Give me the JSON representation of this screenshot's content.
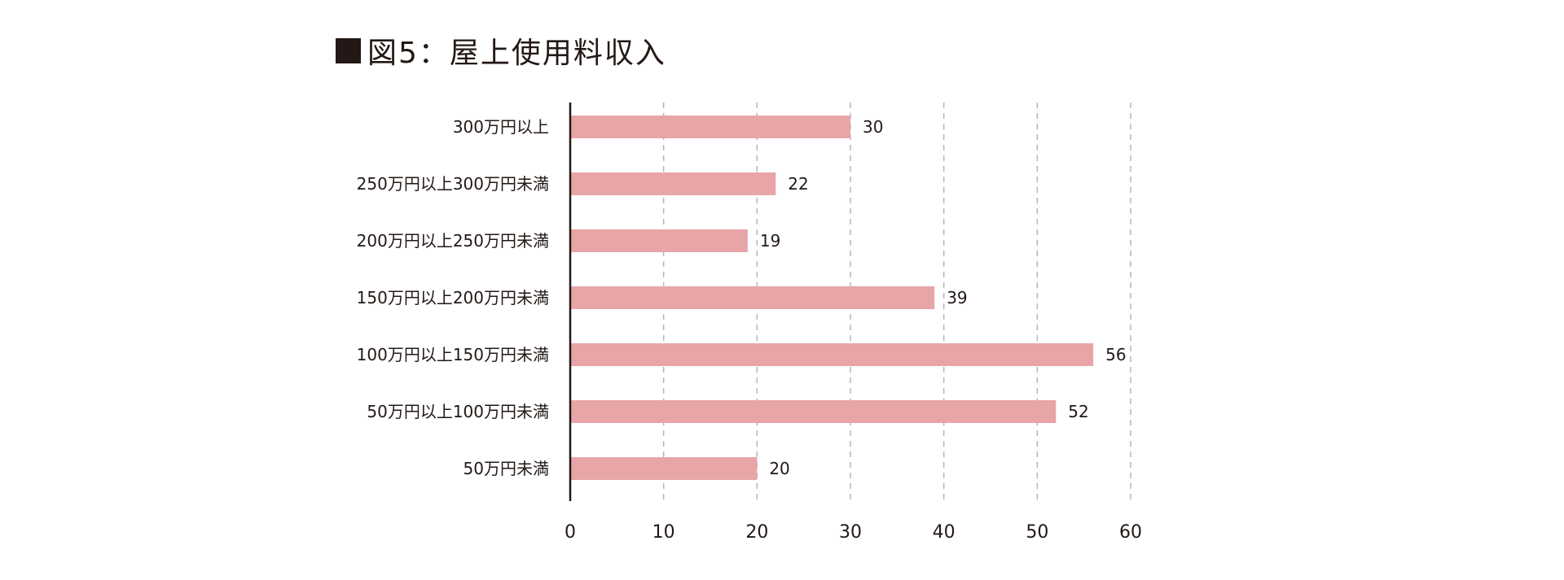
{
  "chart_data": {
    "type": "bar",
    "orientation": "horizontal",
    "title": "図5：屋上使用料収入",
    "categories": [
      "300万円以上",
      "250万円以上300万円未満",
      "200万円以上250万円未満",
      "150万円以上200万円未満",
      "100万円以上150万円未満",
      "50万円以上100万円未満",
      "50万円未満"
    ],
    "values": [
      30,
      22,
      19,
      39,
      56,
      52,
      20
    ],
    "xlim": [
      0,
      60
    ],
    "xticks": [
      0,
      10,
      20,
      30,
      40,
      50,
      60
    ],
    "grid": "vertical dashed",
    "bar_color": "#e8a5a8",
    "axis_color": "#231815",
    "grid_color": "#b5b5b5"
  }
}
